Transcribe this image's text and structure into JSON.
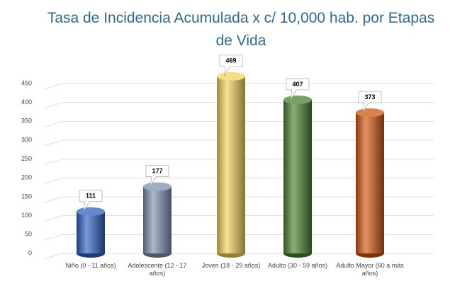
{
  "chart_data": {
    "type": "bar",
    "title": "Tasa de Incidencia Acumulada x c/ 10,000 hab. por Etapas de Vida",
    "categories": [
      "Niño (0 - 11 años)",
      "Adolescente (12 - 17 años)",
      "Joven (18 - 29 años)",
      "Adulto (30 - 59 años)",
      "Adulto Mayor (60 a más años)"
    ],
    "values": [
      111,
      177,
      469,
      407,
      373
    ],
    "colors": [
      "#2f62c4",
      "#7d92b3",
      "#f3d35a",
      "#4b8230",
      "#d2570f"
    ],
    "ylim": [
      0,
      450
    ],
    "yticks": [
      0,
      50,
      100,
      150,
      200,
      250,
      300,
      350,
      400,
      450
    ],
    "grid": true
  }
}
